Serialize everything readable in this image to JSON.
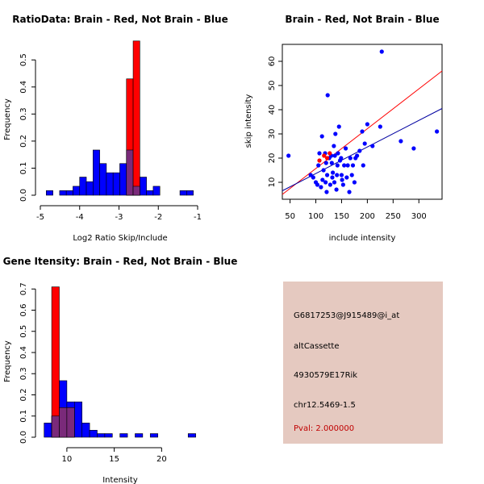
{
  "chart_data": [
    {
      "type": "bar",
      "subtype": "overlaid-histogram",
      "title": "RatioData: Brain - Red, Not Brain - Blue",
      "xlabel": "Log2 Ratio Skip/Include",
      "ylabel": "Frequency",
      "xlim": [
        -5,
        -1
      ],
      "ylim": [
        0,
        0.55
      ],
      "x_ticks": [
        -5,
        -4,
        -3,
        -2,
        -1
      ],
      "y_ticks": [
        0.0,
        0.1,
        0.2,
        0.3,
        0.4,
        0.5
      ],
      "series": [
        {
          "name": "Not Brain",
          "color": "#0000ff",
          "bin_starts": [
            -4.85,
            -4.51,
            -4.34,
            -4.17,
            -4.0,
            -3.83,
            -3.66,
            -3.49,
            -3.32,
            -3.15,
            -2.98,
            -2.81,
            -2.64,
            -2.47,
            -2.3,
            -2.13,
            -1.96,
            -1.45,
            -1.28
          ],
          "bin_width": 0.17,
          "values": [
            0.017,
            0.017,
            0.017,
            0.033,
            0.067,
            0.05,
            0.167,
            0.117,
            0.083,
            0.083,
            0.117,
            0.167,
            0.033,
            0.067,
            0.017,
            0.033,
            0.0,
            0.017,
            0.017
          ]
        },
        {
          "name": "Brain",
          "color": "#ff0000",
          "bin_starts": [
            -2.81,
            -2.64
          ],
          "bin_width": 0.17,
          "values": [
            0.43,
            0.57
          ]
        }
      ]
    },
    {
      "type": "scatter",
      "title": "Brain - Red, Not Brain - Blue",
      "xlabel": "include intensity",
      "ylabel": "skip intensity",
      "xlim": [
        35,
        345
      ],
      "ylim": [
        3,
        67
      ],
      "x_ticks": [
        50,
        100,
        150,
        200,
        250,
        300
      ],
      "y_ticks": [
        10,
        20,
        30,
        40,
        50,
        60
      ],
      "series": [
        {
          "name": "Not Brain",
          "color": "#0000ff",
          "points": [
            [
              47,
              21
            ],
            [
              90,
              13
            ],
            [
              95,
              12
            ],
            [
              100,
              10
            ],
            [
              103,
              9
            ],
            [
              105,
              17
            ],
            [
              107,
              22
            ],
            [
              110,
              8
            ],
            [
              112,
              29
            ],
            [
              113,
              11
            ],
            [
              115,
              15
            ],
            [
              118,
              22
            ],
            [
              119,
              10
            ],
            [
              120,
              18
            ],
            [
              121,
              6
            ],
            [
              122,
              13
            ],
            [
              123,
              46
            ],
            [
              126,
              20
            ],
            [
              128,
              9
            ],
            [
              130,
              21
            ],
            [
              131,
              18
            ],
            [
              132,
              12
            ],
            [
              133,
              14
            ],
            [
              135,
              25
            ],
            [
              136,
              10
            ],
            [
              137,
              21
            ],
            [
              138,
              30
            ],
            [
              140,
              7
            ],
            [
              141,
              13
            ],
            [
              142,
              17
            ],
            [
              143,
              22
            ],
            [
              145,
              33
            ],
            [
              147,
              19
            ],
            [
              149,
              20
            ],
            [
              150,
              13
            ],
            [
              151,
              11
            ],
            [
              153,
              9
            ],
            [
              155,
              17
            ],
            [
              158,
              24
            ],
            [
              160,
              12
            ],
            [
              162,
              17
            ],
            [
              165,
              6
            ],
            [
              167,
              20
            ],
            [
              170,
              13
            ],
            [
              172,
              17
            ],
            [
              175,
              10
            ],
            [
              177,
              20
            ],
            [
              180,
              21
            ],
            [
              185,
              23
            ],
            [
              190,
              31
            ],
            [
              192,
              17
            ],
            [
              195,
              26
            ],
            [
              200,
              34
            ],
            [
              210,
              25
            ],
            [
              225,
              33
            ],
            [
              228,
              64
            ],
            [
              265,
              27
            ],
            [
              290,
              24
            ],
            [
              335,
              31
            ]
          ]
        },
        {
          "name": "Brain",
          "color": "#ff0000",
          "points": [
            [
              107,
              19
            ],
            [
              116,
              21
            ],
            [
              122,
              20
            ],
            [
              127,
              22
            ]
          ]
        }
      ],
      "fit_lines": [
        {
          "name": "Brain fit",
          "color": "#ff0000",
          "from": [
            35,
            5
          ],
          "to": [
            345,
            56
          ]
        },
        {
          "name": "Not Brain fit",
          "color": "#0000a0",
          "from": [
            35,
            6.5
          ],
          "to": [
            345,
            40.5
          ]
        }
      ]
    },
    {
      "type": "bar",
      "subtype": "overlaid-histogram",
      "title": "Gene Itensity: Brain - Red, Not Brain - Blue",
      "xlabel": "Intensity",
      "ylabel": "Frequency",
      "xlim": [
        7.2,
        23.8
      ],
      "ylim": [
        0,
        0.72
      ],
      "x_ticks": [
        10,
        15,
        20
      ],
      "y_ticks": [
        0.0,
        0.1,
        0.2,
        0.3,
        0.4,
        0.5,
        0.6,
        0.7
      ],
      "series": [
        {
          "name": "Not Brain",
          "color": "#0000ff",
          "bin_starts": [
            7.6,
            8.4,
            9.2,
            10.0,
            10.8,
            11.6,
            12.4,
            13.2,
            14.0,
            15.6,
            17.2,
            18.8,
            22.8
          ],
          "bin_width": 0.8,
          "values": [
            0.067,
            0.1,
            0.267,
            0.167,
            0.167,
            0.067,
            0.033,
            0.017,
            0.017,
            0.017,
            0.017,
            0.017,
            0.017
          ]
        },
        {
          "name": "Brain",
          "color": "#ff0000",
          "bin_starts": [
            8.4,
            9.2,
            10.0
          ],
          "bin_width": 0.8,
          "values": [
            0.71,
            0.14,
            0.14
          ]
        }
      ]
    }
  ],
  "info_panel": {
    "probe_id": "G6817253@J915489@i_at",
    "event_type": "altCassette",
    "gene": "4930579E17Rik",
    "location": "chr12.5469-1.5",
    "pval": "Pval: 2.000000",
    "background_color": "#e5c9c0",
    "pval_color": "#c00000"
  }
}
